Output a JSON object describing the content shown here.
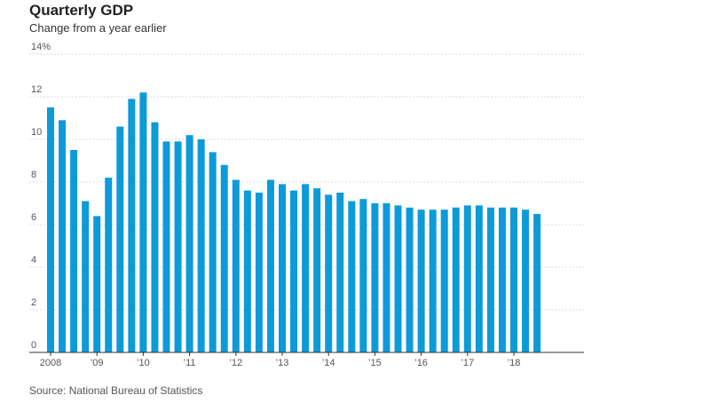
{
  "chart_data": {
    "type": "bar",
    "title": "Quarterly GDP",
    "subtitle": "Change from a year earlier",
    "source": "Source: National Bureau of Statistics",
    "xlabel": "",
    "ylabel": "",
    "ylim": [
      0,
      14
    ],
    "yticks": [
      0,
      2,
      4,
      6,
      8,
      10,
      12,
      14
    ],
    "ytick_labels": [
      "0",
      "2",
      "4",
      "6",
      "8",
      "10",
      "12",
      "14%"
    ],
    "grid": true,
    "bar_color": "#0d9ad9",
    "x_tick_labels": [
      "2008",
      "’09",
      "’10",
      "’11",
      "’12",
      "’13",
      "’14",
      "’15",
      "’16",
      "’17",
      "’18"
    ],
    "categories": [
      "2008 Q1",
      "2008 Q2",
      "2008 Q3",
      "2008 Q4",
      "2009 Q1",
      "2009 Q2",
      "2009 Q3",
      "2009 Q4",
      "2010 Q1",
      "2010 Q2",
      "2010 Q3",
      "2010 Q4",
      "2011 Q1",
      "2011 Q2",
      "2011 Q3",
      "2011 Q4",
      "2012 Q1",
      "2012 Q2",
      "2012 Q3",
      "2012 Q4",
      "2013 Q1",
      "2013 Q2",
      "2013 Q3",
      "2013 Q4",
      "2014 Q1",
      "2014 Q2",
      "2014 Q3",
      "2014 Q4",
      "2015 Q1",
      "2015 Q2",
      "2015 Q3",
      "2015 Q4",
      "2016 Q1",
      "2016 Q2",
      "2016 Q3",
      "2016 Q4",
      "2017 Q1",
      "2017 Q2",
      "2017 Q3",
      "2017 Q4",
      "2018 Q1",
      "2018 Q2",
      "2018 Q3"
    ],
    "values": [
      11.5,
      10.9,
      9.5,
      7.1,
      6.4,
      8.2,
      10.6,
      11.9,
      12.2,
      10.8,
      9.9,
      9.9,
      10.2,
      10.0,
      9.4,
      8.8,
      8.1,
      7.6,
      7.5,
      8.1,
      7.9,
      7.6,
      7.9,
      7.7,
      7.4,
      7.5,
      7.1,
      7.2,
      7.0,
      7.0,
      6.9,
      6.8,
      6.7,
      6.7,
      6.7,
      6.8,
      6.9,
      6.9,
      6.8,
      6.8,
      6.8,
      6.7,
      6.5
    ]
  }
}
